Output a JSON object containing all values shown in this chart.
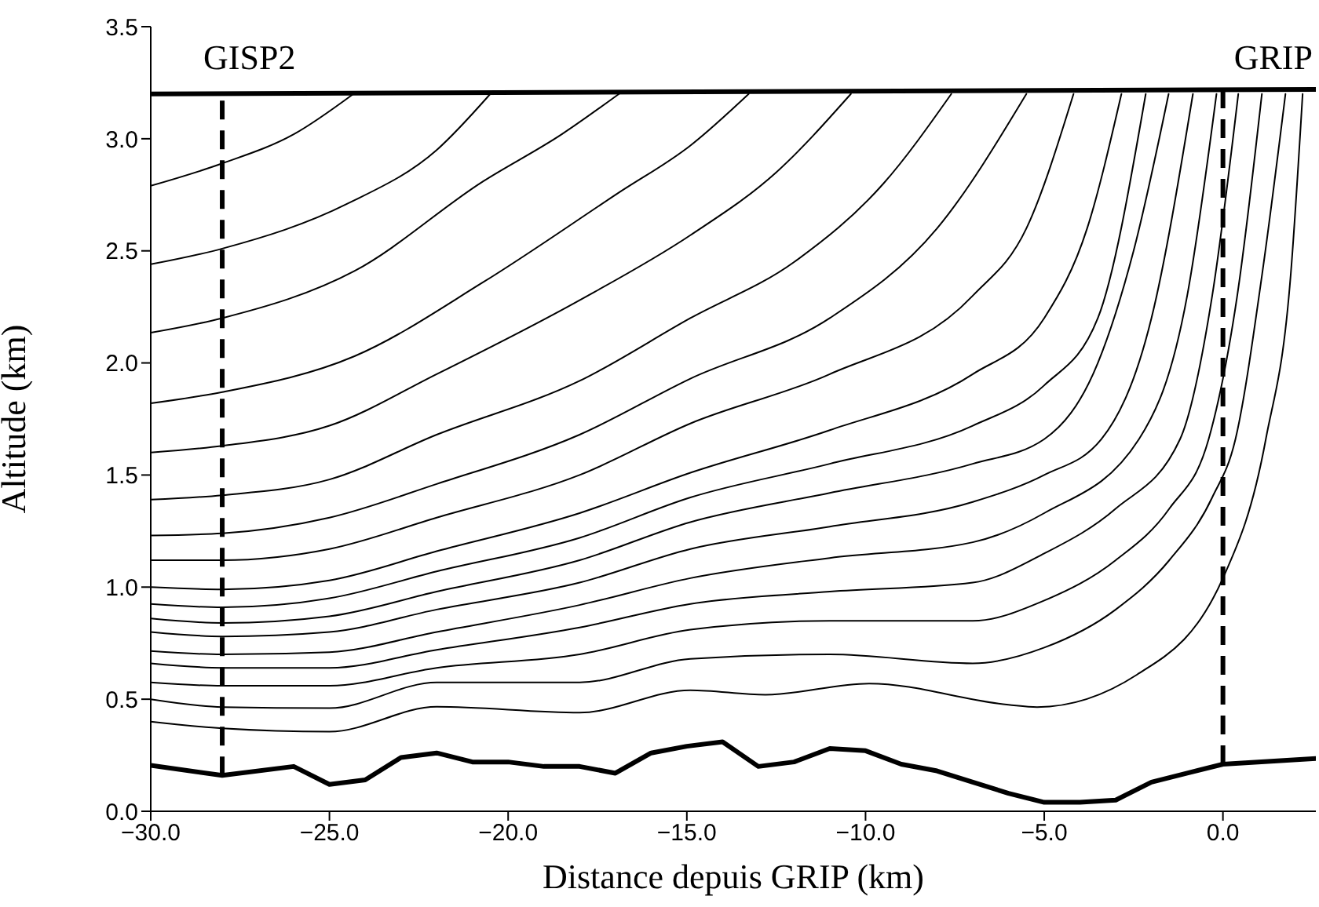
{
  "chart_data": {
    "type": "line",
    "xlabel": "Distance depuis GRIP (km)",
    "ylabel": "Altitude (km)",
    "xlim": [
      -30,
      2.6
    ],
    "ylim": [
      0,
      3.5
    ],
    "xticks": [
      {
        "value": -30,
        "label": "−30.0"
      },
      {
        "value": -25,
        "label": "−25.0"
      },
      {
        "value": -20,
        "label": "−20.0"
      },
      {
        "value": -15,
        "label": "−15.0"
      },
      {
        "value": -10,
        "label": "−10.0"
      },
      {
        "value": -5,
        "label": "−5.0"
      },
      {
        "value": 0,
        "label": "0.0"
      }
    ],
    "yticks": [
      {
        "value": 0,
        "label": "0.0"
      },
      {
        "value": 0.5,
        "label": "0.5"
      },
      {
        "value": 1,
        "label": "1.0"
      },
      {
        "value": 1.5,
        "label": "1.5"
      },
      {
        "value": 2,
        "label": "2.0"
      },
      {
        "value": 2.5,
        "label": "2.5"
      },
      {
        "value": 3,
        "label": "3.0"
      },
      {
        "value": 3.5,
        "label": "3.5"
      }
    ],
    "marker": "none",
    "line_style": "solid",
    "ref_lines": [
      {
        "axis": "x",
        "value": -28,
        "label": "GISP2",
        "color": "#000000",
        "line_style": "dashed"
      },
      {
        "axis": "x",
        "value": 0,
        "label": "GRIP",
        "color": "#000000",
        "line_style": "dashed"
      }
    ],
    "series": [
      {
        "color": "#000000",
        "x": [
          -30,
          2.6
        ],
        "values": [
          3.2,
          3.22
        ]
      },
      {
        "color": "#000000",
        "x": [
          -30,
          -28,
          -26,
          -25,
          -24,
          -23,
          -22,
          -21,
          -20,
          -19,
          -18,
          -17,
          -16,
          -15,
          -14,
          -13,
          -12,
          -11,
          -10,
          -9,
          -8,
          -7,
          -6,
          -5,
          -4,
          -3,
          -2,
          -1,
          0,
          2.6
        ],
        "values": [
          0.205,
          0.16,
          0.2,
          0.12,
          0.14,
          0.24,
          0.26,
          0.22,
          0.22,
          0.2,
          0.2,
          0.17,
          0.26,
          0.29,
          0.31,
          0.2,
          0.22,
          0.28,
          0.27,
          0.21,
          0.18,
          0.13,
          0.08,
          0.04,
          0.04,
          0.05,
          0.13,
          0.17,
          0.21,
          0.235
        ]
      },
      {
        "color": "#000000",
        "x": [
          -30,
          -28,
          -26,
          -24.33
        ],
        "values": [
          2.79,
          2.89,
          3.02,
          3.2
        ]
      },
      {
        "color": "#000000",
        "x": [
          -30,
          -28,
          -24.5,
          -22,
          -20.5
        ],
        "values": [
          2.44,
          2.51,
          2.71,
          2.95,
          3.2
        ]
      },
      {
        "color": "#000000",
        "x": [
          -30,
          -28,
          -24.3,
          -20.7,
          -18.5,
          -16.9
        ],
        "values": [
          2.135,
          2.2,
          2.41,
          2.81,
          3.02,
          3.2
        ]
      },
      {
        "color": "#000000",
        "x": [
          -30,
          -28,
          -24.3,
          -20.7,
          -16.9,
          -14.9,
          -13.27
        ],
        "values": [
          1.82,
          1.87,
          2.03,
          2.36,
          2.76,
          2.97,
          3.2
        ]
      },
      {
        "color": "#000000",
        "x": [
          -30,
          -28,
          -25,
          -22,
          -18,
          -14.9,
          -12.5,
          -10.41
        ],
        "values": [
          1.6,
          1.63,
          1.72,
          1.95,
          2.28,
          2.57,
          2.85,
          3.2
        ]
      },
      {
        "color": "#000000",
        "x": [
          -30,
          -28,
          -25,
          -22,
          -18,
          -14.9,
          -12,
          -9.5,
          -7.6
        ],
        "values": [
          1.39,
          1.41,
          1.48,
          1.68,
          1.92,
          2.2,
          2.45,
          2.8,
          3.2
        ]
      },
      {
        "color": "#000000",
        "x": [
          -30,
          -28,
          -25,
          -22,
          -18,
          -14.9,
          -11,
          -8,
          -5.5
        ],
        "values": [
          1.23,
          1.24,
          1.31,
          1.46,
          1.68,
          1.93,
          2.2,
          2.6,
          3.2
        ]
      },
      {
        "color": "#000000",
        "x": [
          -30,
          -28,
          -25,
          -22,
          -18,
          -14.9,
          -11,
          -7,
          -5.5,
          -4.18
        ],
        "values": [
          1.12,
          1.12,
          1.17,
          1.31,
          1.5,
          1.73,
          1.95,
          2.3,
          2.6,
          3.2
        ]
      },
      {
        "color": "#000000",
        "x": [
          -30,
          -28,
          -25,
          -22,
          -18,
          -14.9,
          -11,
          -7,
          -5,
          -3.8,
          -2.84
        ],
        "values": [
          1.0,
          0.99,
          1.03,
          1.16,
          1.33,
          1.51,
          1.7,
          1.95,
          2.2,
          2.6,
          3.2
        ]
      },
      {
        "color": "#000000",
        "x": [
          -30,
          -28,
          -25,
          -22,
          -18,
          -14.9,
          -11,
          -7,
          -5,
          -3.5,
          -2.16
        ],
        "values": [
          0.925,
          0.91,
          0.95,
          1.07,
          1.22,
          1.4,
          1.55,
          1.72,
          1.9,
          2.2,
          3.2
        ]
      },
      {
        "color": "#000000",
        "x": [
          -30,
          -28,
          -25,
          -22,
          -18,
          -14.9,
          -11,
          -7,
          -5,
          -3.5,
          -2.5,
          -1.52
        ],
        "values": [
          0.86,
          0.84,
          0.87,
          0.98,
          1.12,
          1.29,
          1.42,
          1.55,
          1.66,
          2.0,
          2.5,
          3.2
        ]
      },
      {
        "color": "#000000",
        "x": [
          -30,
          -28,
          -25,
          -22,
          -18,
          -14.9,
          -11,
          -7,
          -5,
          -3.4,
          -2,
          -0.84
        ],
        "values": [
          0.8,
          0.78,
          0.8,
          0.9,
          1.02,
          1.17,
          1.27,
          1.38,
          1.5,
          1.66,
          2.2,
          3.2
        ]
      },
      {
        "color": "#000000",
        "x": [
          -30,
          -28,
          -25,
          -22,
          -18,
          -14.9,
          -11,
          -7,
          -5,
          -2.35,
          -1,
          -0.18
        ],
        "values": [
          0.715,
          0.7,
          0.71,
          0.8,
          0.92,
          1.04,
          1.13,
          1.2,
          1.33,
          1.66,
          2.3,
          3.2
        ]
      },
      {
        "color": "#000000",
        "x": [
          -30,
          -28,
          -25,
          -22,
          -18,
          -14.9,
          -11,
          -7,
          -5,
          -3,
          -1.2,
          -0.3,
          0.43
        ],
        "values": [
          0.66,
          0.64,
          0.64,
          0.72,
          0.82,
          0.925,
          0.98,
          1.02,
          1.15,
          1.35,
          1.66,
          2.3,
          3.2
        ]
      },
      {
        "color": "#000000",
        "x": [
          -30,
          -28,
          -25,
          -22,
          -18,
          -14.9,
          -11,
          -7,
          -5,
          -3,
          -1.5,
          -0.4,
          0.4,
          1.09
        ],
        "values": [
          0.575,
          0.56,
          0.56,
          0.64,
          0.7,
          0.81,
          0.85,
          0.85,
          0.94,
          1.12,
          1.35,
          1.66,
          2.3,
          3.2
        ]
      },
      {
        "color": "#000000",
        "x": [
          -30,
          -28,
          -25,
          -22,
          -18,
          -14.9,
          -11,
          -7,
          -5,
          -3,
          -1.5,
          -0.3,
          0.35,
          1.1,
          1.75
        ],
        "values": [
          0.5,
          0.465,
          0.46,
          0.575,
          0.575,
          0.68,
          0.7,
          0.66,
          0.73,
          0.9,
          1.12,
          1.4,
          1.66,
          2.4,
          3.2
        ]
      },
      {
        "color": "#000000",
        "x": [
          -30,
          -28,
          -25,
          -22,
          -18,
          -14.9,
          -12.8,
          -9.9,
          -6,
          -5.2,
          -2.4,
          0,
          1.2,
          1.9,
          2.23
        ],
        "values": [
          0.4,
          0.37,
          0.355,
          0.466,
          0.44,
          0.54,
          0.52,
          0.57,
          0.475,
          0.465,
          0.61,
          1.04,
          1.66,
          2.4,
          3.2
        ]
      }
    ]
  }
}
